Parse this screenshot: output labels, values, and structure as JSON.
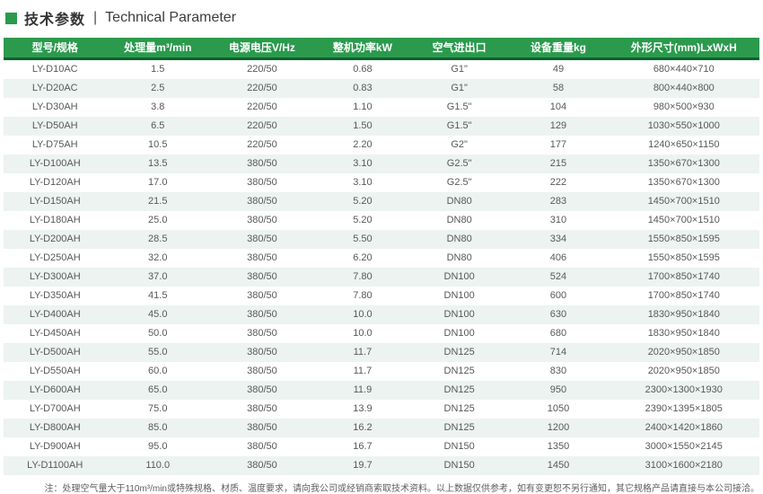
{
  "title": {
    "bullet_icon": "green-square",
    "zh": "技术参数",
    "separator": "|",
    "en": "Technical Parameter"
  },
  "table": {
    "columns": [
      "型号/规格",
      "处理量m³/min",
      "电源电压V/Hz",
      "整机功率kW",
      "空气进出口",
      "设备重量kg",
      "外形尺寸(mm)LxWxH"
    ],
    "rows": [
      [
        "LY-D10AC",
        "1.5",
        "220/50",
        "0.68",
        "G1\"",
        "49",
        "680×440×710"
      ],
      [
        "LY-D20AC",
        "2.5",
        "220/50",
        "0.83",
        "G1\"",
        "58",
        "800×440×800"
      ],
      [
        "LY-D30AH",
        "3.8",
        "220/50",
        "1.10",
        "G1.5\"",
        "104",
        "980×500×930"
      ],
      [
        "LY-D50AH",
        "6.5",
        "220/50",
        "1.50",
        "G1.5\"",
        "129",
        "1030×550×1000"
      ],
      [
        "LY-D75AH",
        "10.5",
        "220/50",
        "2.20",
        "G2\"",
        "177",
        "1240×650×1150"
      ],
      [
        "LY-D100AH",
        "13.5",
        "380/50",
        "3.10",
        "G2.5\"",
        "215",
        "1350×670×1300"
      ],
      [
        "LY-D120AH",
        "17.0",
        "380/50",
        "3.10",
        "G2.5\"",
        "222",
        "1350×670×1300"
      ],
      [
        "LY-D150AH",
        "21.5",
        "380/50",
        "5.20",
        "DN80",
        "283",
        "1450×700×1510"
      ],
      [
        "LY-D180AH",
        "25.0",
        "380/50",
        "5.20",
        "DN80",
        "310",
        "1450×700×1510"
      ],
      [
        "LY-D200AH",
        "28.5",
        "380/50",
        "5.50",
        "DN80",
        "334",
        "1550×850×1595"
      ],
      [
        "LY-D250AH",
        "32.0",
        "380/50",
        "6.20",
        "DN80",
        "406",
        "1550×850×1595"
      ],
      [
        "LY-D300AH",
        "37.0",
        "380/50",
        "7.80",
        "DN100",
        "524",
        "1700×850×1740"
      ],
      [
        "LY-D350AH",
        "41.5",
        "380/50",
        "7.80",
        "DN100",
        "600",
        "1700×850×1740"
      ],
      [
        "LY-D400AH",
        "45.0",
        "380/50",
        "10.0",
        "DN100",
        "630",
        "1830×950×1840"
      ],
      [
        "LY-D450AH",
        "50.0",
        "380/50",
        "10.0",
        "DN100",
        "680",
        "1830×950×1840"
      ],
      [
        "LY-D500AH",
        "55.0",
        "380/50",
        "11.7",
        "DN125",
        "714",
        "2020×950×1850"
      ],
      [
        "LY-D550AH",
        "60.0",
        "380/50",
        "11.7",
        "DN125",
        "830",
        "2020×950×1850"
      ],
      [
        "LY-D600AH",
        "65.0",
        "380/50",
        "11.9",
        "DN125",
        "950",
        "2300×1300×1930"
      ],
      [
        "LY-D700AH",
        "75.0",
        "380/50",
        "13.9",
        "DN125",
        "1050",
        "2390×1395×1805"
      ],
      [
        "LY-D800AH",
        "85.0",
        "380/50",
        "16.2",
        "DN125",
        "1200",
        "2400×1420×1860"
      ],
      [
        "LY-D900AH",
        "95.0",
        "380/50",
        "16.7",
        "DN150",
        "1350",
        "3000×1550×2145"
      ],
      [
        "LY-D1100AH",
        "110.0",
        "380/50",
        "19.7",
        "DN150",
        "1450",
        "3100×1600×2180"
      ]
    ]
  },
  "note": "注：处理空气量大于110m³/min或特殊规格、材质、温度要求，请向我公司或经销商索取技术资料。以上数据仅供参考，如有变更恕不另行通知，其它规格产品请直接与本公司接洽。",
  "colors": {
    "accent_green": "#2b9a4d",
    "header_border_green": "#0d632f",
    "alt_row_bg": "#edf3f0",
    "header_text": "#ffffff",
    "body_text": "#57585a"
  }
}
